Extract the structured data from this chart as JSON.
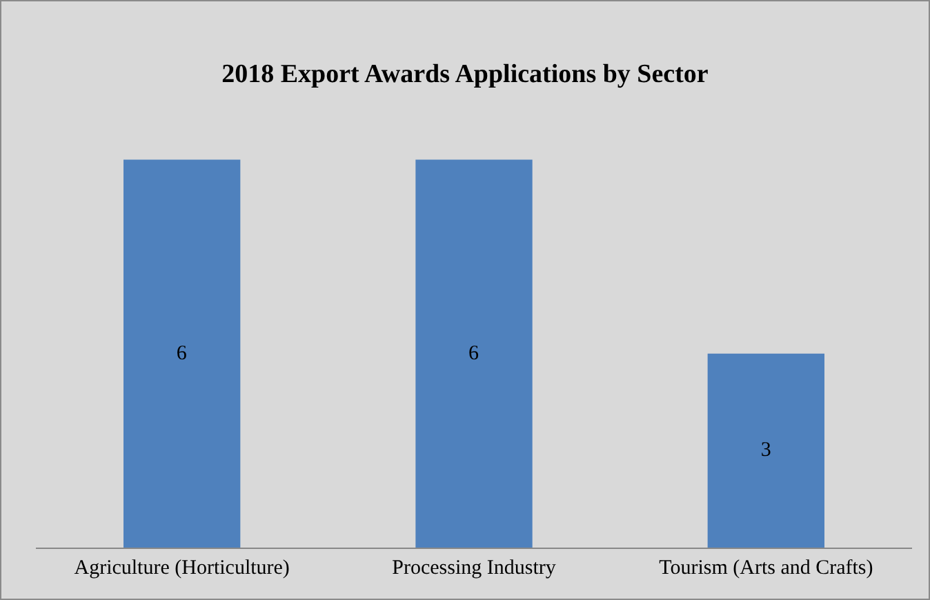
{
  "chart_data": {
    "type": "bar",
    "title": "2018 Export Awards Applications by Sector",
    "categories": [
      "Agriculture (Horticulture)",
      "Processing Industry",
      "Tourism (Arts and Crafts)"
    ],
    "values": [
      6,
      6,
      3
    ],
    "color": "#4f81bd",
    "data_labels": true,
    "grid": false,
    "legend": false
  }
}
